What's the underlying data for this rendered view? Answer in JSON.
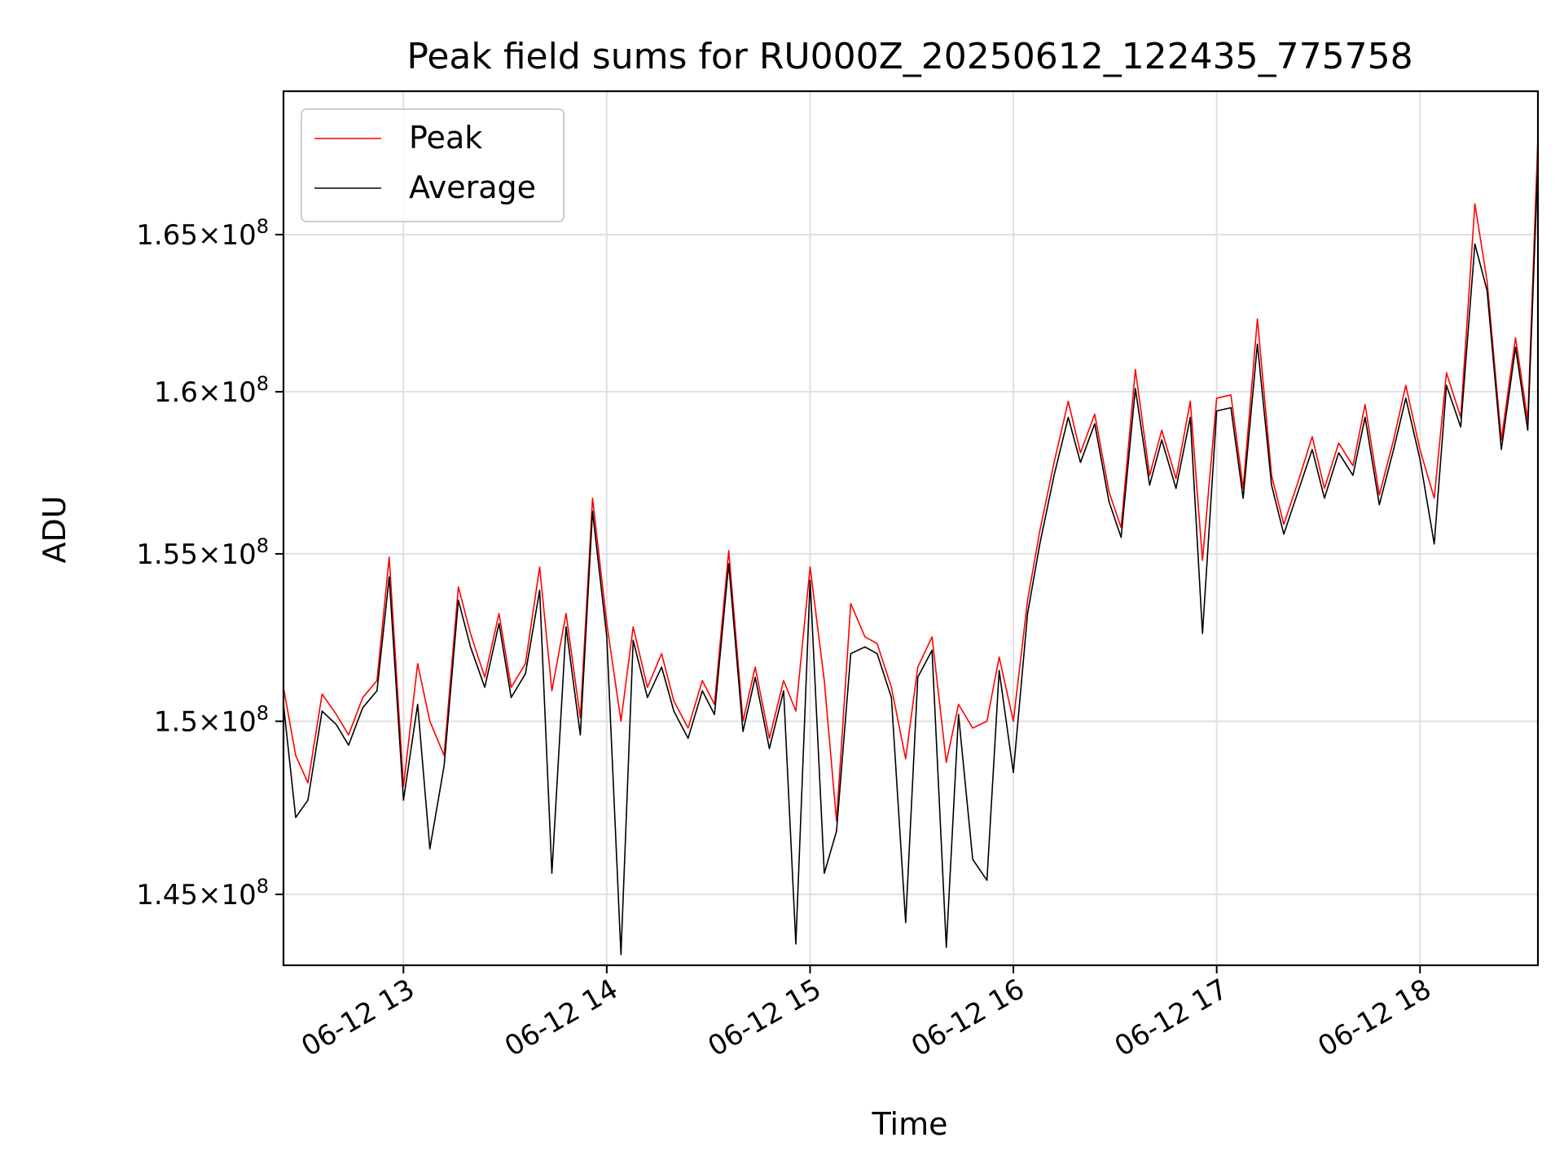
{
  "chart_data": {
    "type": "line",
    "title": "Peak field sums for RU000Z_20250612_122435_775758",
    "xlabel": "Time",
    "ylabel": "ADU",
    "x_range": [
      "2025-06-12 12:24:35",
      "2025-06-12 18:35:00"
    ],
    "xlim_hours": [
      12.41,
      18.58
    ],
    "ylim": [
      143000000,
      169700000
    ],
    "y_scale": "log",
    "grid": true,
    "legend_position": "upper left",
    "x_ticks": [
      {
        "hour": 13,
        "label": "06-12 13"
      },
      {
        "hour": 14,
        "label": "06-12 14"
      },
      {
        "hour": 15,
        "label": "06-12 15"
      },
      {
        "hour": 16,
        "label": "06-12 16"
      },
      {
        "hour": 17,
        "label": "06-12 17"
      },
      {
        "hour": 18,
        "label": "06-12 18"
      }
    ],
    "y_ticks": [
      {
        "value": 145000000,
        "mantissa": "1.45",
        "exponent": "8"
      },
      {
        "value": 150000000,
        "mantissa": "1.5",
        "exponent": "8"
      },
      {
        "value": 155000000,
        "mantissa": "1.55",
        "exponent": "8"
      },
      {
        "value": 160000000,
        "mantissa": "1.6",
        "exponent": "8"
      },
      {
        "value": 165000000,
        "mantissa": "1.65",
        "exponent": "8"
      }
    ],
    "series": [
      {
        "name": "Peak",
        "color": "#ff0000",
        "x_hours": [
          12.41,
          12.47,
          12.53,
          12.6,
          12.67,
          12.73,
          12.8,
          12.87,
          12.93,
          13.0,
          13.07,
          13.13,
          13.2,
          13.27,
          13.33,
          13.4,
          13.47,
          13.53,
          13.6,
          13.67,
          13.73,
          13.8,
          13.87,
          13.93,
          14.0,
          14.07,
          14.13,
          14.2,
          14.27,
          14.33,
          14.4,
          14.47,
          14.53,
          14.6,
          14.67,
          14.73,
          14.8,
          14.87,
          14.93,
          15.0,
          15.07,
          15.13,
          15.2,
          15.27,
          15.33,
          15.4,
          15.47,
          15.53,
          15.6,
          15.67,
          15.73,
          15.8,
          15.87,
          15.93,
          16.0,
          16.07,
          16.13,
          16.2,
          16.27,
          16.33,
          16.4,
          16.47,
          16.53,
          16.6,
          16.67,
          16.73,
          16.8,
          16.87,
          16.93,
          17.0,
          17.07,
          17.13,
          17.2,
          17.27,
          17.33,
          17.4,
          17.47,
          17.53,
          17.6,
          17.67,
          17.73,
          17.8,
          17.87,
          17.93,
          18.0,
          18.07,
          18.13,
          18.2,
          18.27,
          18.33,
          18.4,
          18.47,
          18.53,
          18.58
        ],
        "values": [
          151000000,
          149000000,
          148200000,
          150800000,
          150200000,
          149600000,
          150700000,
          151200000,
          154900000,
          148100000,
          151700000,
          150000000,
          149000000,
          154000000,
          152600000,
          151300000,
          153200000,
          151000000,
          151700000,
          154600000,
          150900000,
          153200000,
          150100000,
          156700000,
          152900000,
          150000000,
          152800000,
          151000000,
          152000000,
          150600000,
          149800000,
          151200000,
          150500000,
          155100000,
          150000000,
          151600000,
          149500000,
          151200000,
          150300000,
          154600000,
          151200000,
          147100000,
          153500000,
          152500000,
          152300000,
          151000000,
          148900000,
          151600000,
          152500000,
          148800000,
          150500000,
          149800000,
          150000000,
          151900000,
          150000000,
          153600000,
          155700000,
          157800000,
          159700000,
          158100000,
          159300000,
          156900000,
          155800000,
          160700000,
          157400000,
          158800000,
          157300000,
          159700000,
          154800000,
          159800000,
          159900000,
          157000000,
          162300000,
          157400000,
          155900000,
          157200000,
          158600000,
          157000000,
          158400000,
          157700000,
          159600000,
          156800000,
          158500000,
          160200000,
          158200000,
          156700000,
          160600000,
          159200000,
          166000000,
          163500000,
          158500000,
          161700000,
          159100000,
          168200000
        ]
      },
      {
        "name": "Average",
        "color": "#000000",
        "x_hours": [
          12.41,
          12.47,
          12.53,
          12.6,
          12.67,
          12.73,
          12.8,
          12.87,
          12.93,
          13.0,
          13.07,
          13.13,
          13.2,
          13.27,
          13.33,
          13.4,
          13.47,
          13.53,
          13.6,
          13.67,
          13.73,
          13.8,
          13.87,
          13.93,
          14.0,
          14.07,
          14.13,
          14.2,
          14.27,
          14.33,
          14.4,
          14.47,
          14.53,
          14.6,
          14.67,
          14.73,
          14.8,
          14.87,
          14.93,
          15.0,
          15.07,
          15.13,
          15.2,
          15.27,
          15.33,
          15.4,
          15.47,
          15.53,
          15.6,
          15.67,
          15.73,
          15.8,
          15.87,
          15.93,
          16.0,
          16.07,
          16.13,
          16.2,
          16.27,
          16.33,
          16.4,
          16.47,
          16.53,
          16.6,
          16.67,
          16.73,
          16.8,
          16.87,
          16.93,
          17.0,
          17.07,
          17.13,
          17.2,
          17.27,
          17.33,
          17.4,
          17.47,
          17.53,
          17.6,
          17.67,
          17.73,
          17.8,
          17.87,
          17.93,
          18.0,
          18.07,
          18.13,
          18.2,
          18.27,
          18.33,
          18.4,
          18.47,
          18.53,
          18.58
        ],
        "values": [
          150500000,
          147200000,
          147700000,
          150300000,
          149900000,
          149300000,
          150400000,
          150900000,
          154300000,
          147700000,
          150500000,
          146300000,
          148700000,
          153600000,
          152200000,
          151000000,
          152900000,
          150700000,
          151400000,
          153900000,
          145600000,
          152800000,
          149600000,
          156300000,
          152500000,
          143300000,
          152400000,
          150700000,
          151600000,
          150300000,
          149500000,
          150900000,
          150200000,
          154700000,
          149700000,
          151300000,
          149200000,
          150900000,
          143600000,
          154200000,
          145600000,
          146800000,
          152000000,
          152200000,
          152000000,
          150700000,
          144200000,
          151300000,
          152100000,
          143500000,
          150200000,
          146000000,
          145400000,
          151500000,
          148500000,
          153200000,
          155300000,
          157400000,
          159200000,
          157800000,
          159000000,
          156600000,
          155500000,
          160100000,
          157100000,
          158500000,
          157000000,
          159200000,
          152600000,
          159400000,
          159500000,
          156700000,
          161500000,
          157100000,
          155600000,
          156900000,
          158200000,
          156700000,
          158100000,
          157400000,
          159200000,
          156500000,
          158200000,
          159800000,
          157900000,
          155300000,
          160200000,
          158900000,
          164700000,
          163200000,
          158200000,
          161400000,
          158800000,
          167400000
        ]
      }
    ]
  }
}
